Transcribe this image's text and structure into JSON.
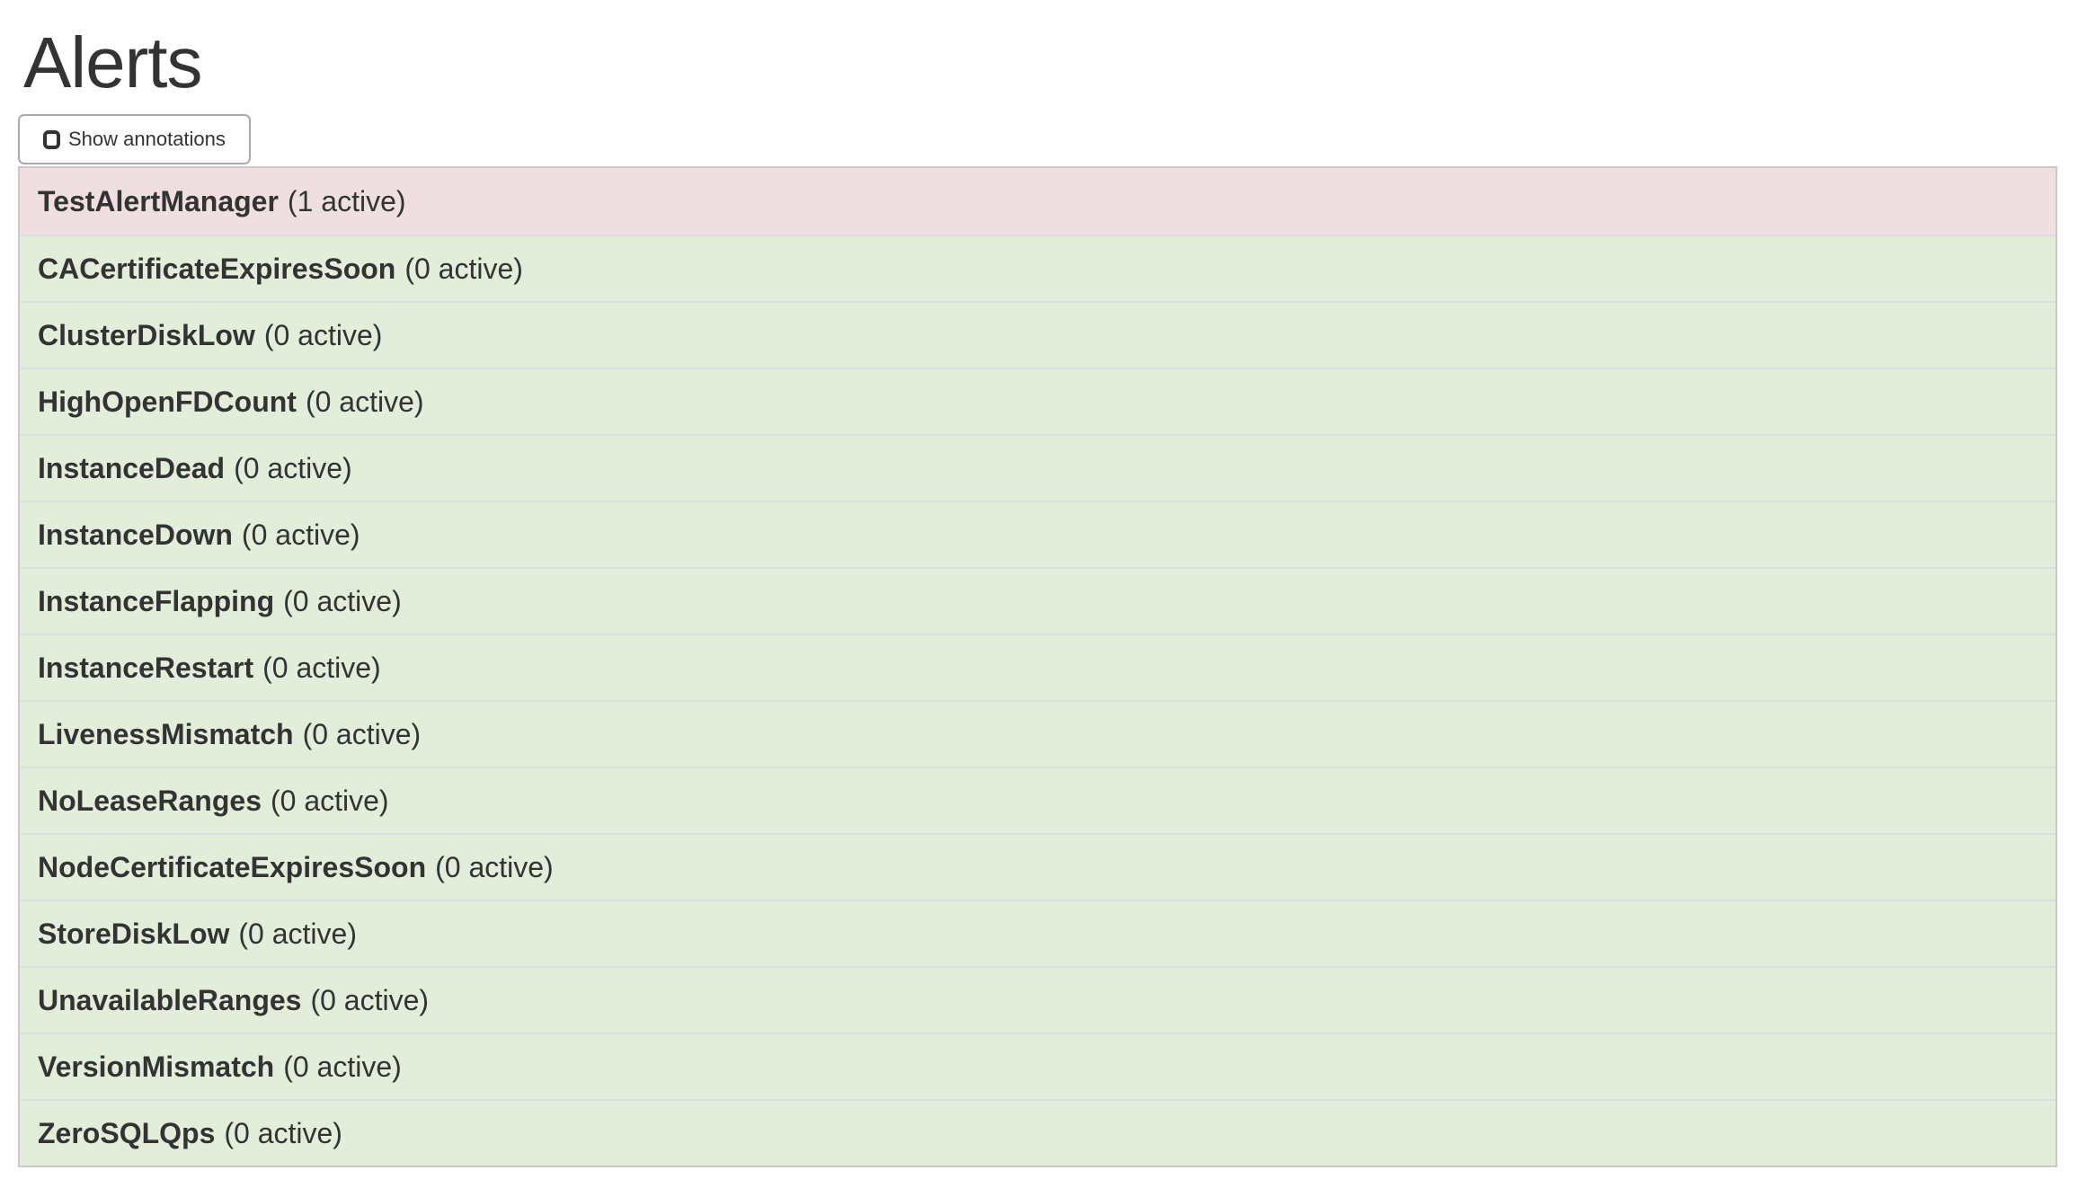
{
  "page": {
    "title": "Alerts"
  },
  "toolbar": {
    "show_annotations_label": "Show annotations",
    "show_annotations_checked": false
  },
  "alerts": [
    {
      "name": "TestAlertManager",
      "count_label": "(1 active)",
      "state": "active"
    },
    {
      "name": "CACertificateExpiresSoon",
      "count_label": "(0 active)",
      "state": "inactive"
    },
    {
      "name": "ClusterDiskLow",
      "count_label": "(0 active)",
      "state": "inactive"
    },
    {
      "name": "HighOpenFDCount",
      "count_label": "(0 active)",
      "state": "inactive"
    },
    {
      "name": "InstanceDead",
      "count_label": "(0 active)",
      "state": "inactive"
    },
    {
      "name": "InstanceDown",
      "count_label": "(0 active)",
      "state": "inactive"
    },
    {
      "name": "InstanceFlapping",
      "count_label": "(0 active)",
      "state": "inactive"
    },
    {
      "name": "InstanceRestart",
      "count_label": "(0 active)",
      "state": "inactive"
    },
    {
      "name": "LivenessMismatch",
      "count_label": "(0 active)",
      "state": "inactive"
    },
    {
      "name": "NoLeaseRanges",
      "count_label": "(0 active)",
      "state": "inactive"
    },
    {
      "name": "NodeCertificateExpiresSoon",
      "count_label": "(0 active)",
      "state": "inactive"
    },
    {
      "name": "StoreDiskLow",
      "count_label": "(0 active)",
      "state": "inactive"
    },
    {
      "name": "UnavailableRanges",
      "count_label": "(0 active)",
      "state": "inactive"
    },
    {
      "name": "VersionMismatch",
      "count_label": "(0 active)",
      "state": "inactive"
    },
    {
      "name": "ZeroSQLQps",
      "count_label": "(0 active)",
      "state": "inactive"
    }
  ],
  "colors": {
    "text": "#333333",
    "active_bg": "#efdfe0",
    "inactive_bg": "#e2eeda",
    "row_border": "#dedee1",
    "panel_border": "#c9c9cc",
    "button_border": "#a9a9a9"
  }
}
